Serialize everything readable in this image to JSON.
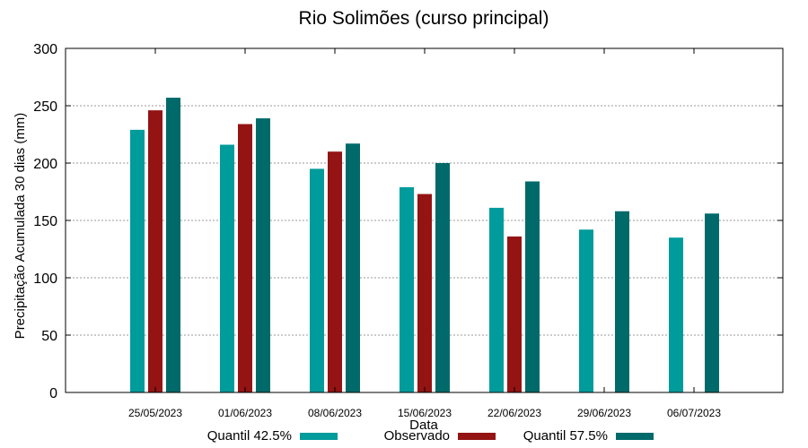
{
  "chart_data": {
    "type": "bar",
    "title": "Rio Solimões (curso principal)",
    "xlabel": "Data",
    "ylabel": "Precipitação Acumulada 30 dias (mm)",
    "ylim": [
      0,
      300
    ],
    "yticks": [
      0,
      50,
      100,
      150,
      200,
      250,
      300
    ],
    "grid": true,
    "legend_position": "bottom",
    "categories": [
      "25/05/2023",
      "01/06/2023",
      "08/06/2023",
      "15/06/2023",
      "22/06/2023",
      "29/06/2023",
      "06/07/2023"
    ],
    "series": [
      {
        "name": "Quantil 42.5%",
        "color": "#009b9b",
        "values": [
          229,
          216,
          195,
          179,
          161,
          142,
          135
        ]
      },
      {
        "name": "Observado",
        "color": "#941313",
        "values": [
          246,
          234,
          210,
          173,
          136,
          null,
          null
        ]
      },
      {
        "name": "Quantil 57.5%",
        "color": "#006a6a",
        "values": [
          257,
          239,
          217,
          200,
          184,
          158,
          156
        ]
      }
    ]
  }
}
